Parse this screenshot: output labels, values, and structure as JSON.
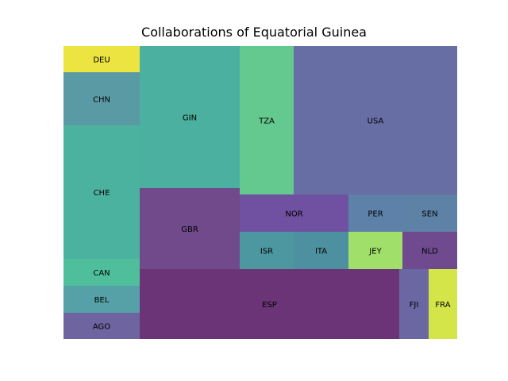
{
  "chart_data": {
    "type": "treemap",
    "title": "Collaborations of Equatorial Guinea",
    "xlabel": "",
    "ylabel": "",
    "grid": false,
    "axes_visible": false,
    "cells": [
      {
        "label": "DEU",
        "value": 32,
        "color": "#ece441"
      },
      {
        "label": "CHN",
        "value": 64,
        "color": "#5a9aa4"
      },
      {
        "label": "CHE",
        "value": 162,
        "color": "#4cb2a0"
      },
      {
        "label": "CAN",
        "value": 32,
        "color": "#4fbf9b"
      },
      {
        "label": "BEL",
        "value": 32,
        "color": "#56a1a8"
      },
      {
        "label": "AGO",
        "value": 32,
        "color": "#6d64a0"
      },
      {
        "label": "GIN",
        "value": 222,
        "color": "#4bb09f"
      },
      {
        "label": "GBR",
        "value": 127,
        "color": "#714a8c"
      },
      {
        "label": "TZA",
        "value": 130,
        "color": "#64c98f"
      },
      {
        "label": "USA",
        "value": 302,
        "color": "#676ea3"
      },
      {
        "label": "NOR",
        "value": 100,
        "color": "#7050a0"
      },
      {
        "label": "PER",
        "value": 50,
        "color": "#5d81a8"
      },
      {
        "label": "SEN",
        "value": 50,
        "color": "#5d82a6"
      },
      {
        "label": "ISR",
        "value": 50,
        "color": "#4d98a0"
      },
      {
        "label": "ITA",
        "value": 50,
        "color": "#4d909f"
      },
      {
        "label": "JEY",
        "value": 50,
        "color": "#a0df6a"
      },
      {
        "label": "NLD",
        "value": 50,
        "color": "#6f4a8e"
      },
      {
        "label": "ESP",
        "value": 300,
        "color": "#6a3476"
      },
      {
        "label": "FJI",
        "value": 34,
        "color": "#6b67a2"
      },
      {
        "label": "FRA",
        "value": 33,
        "color": "#d3e549"
      }
    ]
  }
}
